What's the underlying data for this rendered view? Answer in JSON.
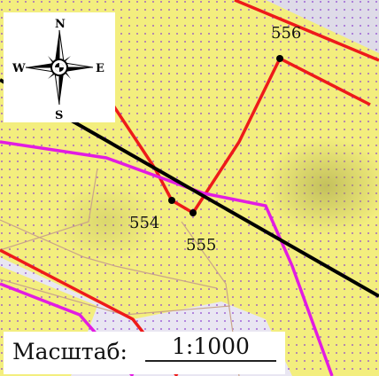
{
  "map": {
    "colors": {
      "background": "#e9e6f2",
      "parcel_fill": "#f3ee7e",
      "dots": "#8a3fd1",
      "boundary_red": "#ee1a1a",
      "boundary_magenta": "#e21ce2",
      "road_black": "#000000",
      "thin_lines": "#c9a48a"
    },
    "points": [
      {
        "id": "554",
        "label": "554"
      },
      {
        "id": "555",
        "label": "555"
      },
      {
        "id": "556",
        "label": "556"
      }
    ],
    "compass": {
      "north": "N",
      "south": "S",
      "east": "E",
      "west": "W",
      "icon": "compass-rose-icon"
    },
    "scale": {
      "label": "Масштаб:",
      "value": "1:1000"
    }
  }
}
